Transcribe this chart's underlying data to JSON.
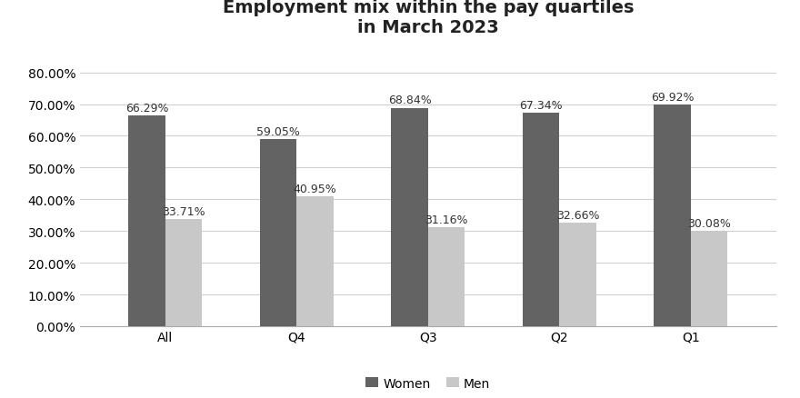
{
  "title": "Employment mix within the pay quartiles\nin March 2023",
  "categories": [
    "All",
    "Q4",
    "Q3",
    "Q2",
    "Q1"
  ],
  "women_values": [
    0.6629,
    0.5905,
    0.6884,
    0.6734,
    0.6992
  ],
  "men_values": [
    0.3371,
    0.4095,
    0.3116,
    0.3266,
    0.3008
  ],
  "women_labels": [
    "66.29%",
    "59.05%",
    "68.84%",
    "67.34%",
    "69.92%"
  ],
  "men_labels": [
    "33.71%",
    "40.95%",
    "31.16%",
    "32.66%",
    "30.08%"
  ],
  "women_color": "#636363",
  "men_color": "#c8c8c8",
  "bar_width": 0.28,
  "ylim": [
    0,
    0.88
  ],
  "yticks": [
    0.0,
    0.1,
    0.2,
    0.3,
    0.4,
    0.5,
    0.6,
    0.7,
    0.8
  ],
  "ytick_labels": [
    "0.00%",
    "10.00%",
    "20.00%",
    "30.00%",
    "40.00%",
    "50.00%",
    "60.00%",
    "70.00%",
    "80.00%"
  ],
  "legend_labels": [
    "Women",
    "Men"
  ],
  "title_fontsize": 14,
  "label_fontsize": 9,
  "tick_fontsize": 10,
  "legend_fontsize": 10,
  "background_color": "#ffffff",
  "grid_color": "#d0d0d0",
  "spine_color": "#aaaaaa"
}
